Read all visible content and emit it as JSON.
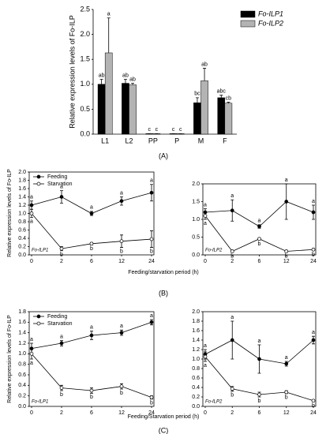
{
  "chart_data": [
    {
      "type": "bar",
      "panel_label": "(A)",
      "ylabel": "Relative expression levels of Fo-ILP",
      "categories": [
        "L1",
        "L2",
        "PP",
        "P",
        "M",
        "F"
      ],
      "series": [
        {
          "name": "Fo-ILP1",
          "color": "#000000",
          "values": [
            1.0,
            1.02,
            0.01,
            0.01,
            0.63,
            0.73
          ],
          "errors": [
            0.1,
            0.08,
            0,
            0,
            0.1,
            0.05
          ],
          "letters": [
            "ab",
            "ab",
            "c",
            "c",
            "bc",
            "abc"
          ]
        },
        {
          "name": "Fo-ILP2",
          "color": "#b3b3b3",
          "values": [
            1.63,
            0.99,
            0.01,
            0.01,
            1.07,
            0.62
          ],
          "errors": [
            0.7,
            0.03,
            0,
            0,
            0.25,
            0.02
          ],
          "letters": [
            "a",
            "ab",
            "c",
            "c",
            "ab",
            "cb"
          ]
        }
      ],
      "ylim": [
        0,
        2.5
      ],
      "yticks": [
        {
          "value": 0,
          "label": "0.0"
        },
        0.5,
        {
          "value": 1,
          "label": "1.0"
        },
        1.5,
        {
          "value": 2,
          "label": "2.0"
        },
        2.5
      ],
      "legend": "upper right"
    },
    {
      "type": "line",
      "panel_label": "(B)",
      "ylabel": "Relative expression levels of Fo-ILP",
      "xlabel": "Feeding/starvation period (h)",
      "inner_label": "Fo-ILP1",
      "categories": [
        "0",
        "2",
        "6",
        "12",
        "24"
      ],
      "series": [
        {
          "name": "Feeding",
          "color": "#000000",
          "marker_fill": "#000000",
          "values": [
            1.2,
            1.4,
            1.0,
            1.3,
            1.5
          ],
          "errors": [
            0.1,
            0.15,
            0.05,
            0.1,
            0.2
          ],
          "letters": [
            "a",
            "a",
            "a",
            "a",
            "a"
          ]
        },
        {
          "name": "Starvation",
          "color": "#000000",
          "marker_fill": "#ffffff",
          "values": [
            1.0,
            0.15,
            0.27,
            0.33,
            0.38
          ],
          "errors": [
            0.1,
            0.05,
            0.03,
            0.15,
            0.2
          ],
          "letters": [
            "a",
            "b",
            "b",
            "b",
            "b"
          ]
        }
      ],
      "ylim": [
        0,
        2
      ],
      "yticks": [
        {
          "value": 0,
          "label": "0.0"
        },
        0.2,
        0.4,
        0.6,
        0.8,
        {
          "value": 1,
          "label": "1.0"
        },
        1.2,
        1.4,
        1.6,
        1.8,
        {
          "value": 2,
          "label": "2.0"
        }
      ],
      "legend": "upper left"
    },
    {
      "type": "line",
      "inner_label": "Fo-ILP2",
      "categories": [
        "0",
        "2",
        "6",
        "12",
        "24"
      ],
      "series": [
        {
          "color": "#000000",
          "marker_fill": "#000000",
          "values": [
            1.2,
            1.25,
            0.8,
            1.5,
            1.2
          ],
          "errors": [
            0.1,
            0.3,
            0.05,
            0.5,
            0.2
          ],
          "letters": [
            "a",
            "a",
            "a",
            "a",
            "a"
          ]
        },
        {
          "color": "#000000",
          "marker_fill": "#ffffff",
          "values": [
            1.1,
            0.1,
            0.45,
            0.1,
            0.15
          ],
          "errors": [
            0.1,
            0.03,
            0.03,
            0.03,
            0.03
          ],
          "letters": [
            "a",
            "b",
            "b",
            "b",
            "b"
          ]
        }
      ],
      "ylim": [
        0,
        2
      ],
      "yticks": [
        {
          "value": 0,
          "label": "0.0"
        },
        0.5,
        {
          "value": 1,
          "label": "1.0"
        },
        1.5,
        {
          "value": 2,
          "label": "2.0"
        }
      ]
    },
    {
      "type": "line",
      "panel_label": "(C)",
      "ylabel": "Relative expression levels of Fo-ILP",
      "xlabel": "Feeding/Starvation period (h)",
      "inner_label": "Fo-ILP1",
      "categories": [
        "0",
        "2",
        "6",
        "12",
        "24"
      ],
      "series": [
        {
          "name": "Feeding",
          "color": "#000000",
          "marker_fill": "#000000",
          "values": [
            1.1,
            1.2,
            1.35,
            1.4,
            1.6
          ],
          "errors": [
            0.1,
            0.05,
            0.08,
            0.05,
            0.05
          ],
          "letters": [
            "a",
            "a",
            "a",
            "a",
            "a"
          ]
        },
        {
          "name": "Starvation",
          "color": "#000000",
          "marker_fill": "#ffffff",
          "values": [
            1.0,
            0.35,
            0.3,
            0.38,
            0.17
          ],
          "errors": [
            0.1,
            0.05,
            0.05,
            0.05,
            0.03
          ],
          "letters": [
            "a",
            "b",
            "b",
            "b",
            "b"
          ]
        }
      ],
      "ylim": [
        0,
        1.8
      ],
      "yticks": [
        {
          "value": 0,
          "label": "0.0"
        },
        0.2,
        0.4,
        0.6,
        0.8,
        {
          "value": 1,
          "label": "1.0"
        },
        1.2,
        1.4,
        1.6,
        1.8
      ],
      "legend": "upper left"
    },
    {
      "type": "line",
      "inner_label": "Fo-ILP2",
      "categories": [
        "0",
        "2",
        "6",
        "12",
        "24"
      ],
      "series": [
        {
          "color": "#000000",
          "marker_fill": "#000000",
          "values": [
            1.1,
            1.4,
            1.0,
            0.9,
            1.4
          ],
          "errors": [
            0.1,
            0.4,
            0.3,
            0.05,
            0.08
          ],
          "letters": [
            "a",
            "a",
            "a",
            "a",
            "a"
          ]
        },
        {
          "color": "#000000",
          "marker_fill": "#ffffff",
          "values": [
            1.05,
            0.37,
            0.25,
            0.3,
            0.12
          ],
          "errors": [
            0.1,
            0.05,
            0.05,
            0.03,
            0.02
          ],
          "letters": [
            "a",
            "b",
            "b",
            "b",
            "b"
          ]
        }
      ],
      "ylim": [
        0,
        2
      ],
      "yticks": [
        {
          "value": 0,
          "label": "0.0"
        },
        0.2,
        0.4,
        0.6,
        0.8,
        {
          "value": 1,
          "label": "1.0"
        },
        1.2,
        1.4,
        1.6,
        1.8,
        {
          "value": 2,
          "label": "2.0"
        }
      ]
    }
  ]
}
